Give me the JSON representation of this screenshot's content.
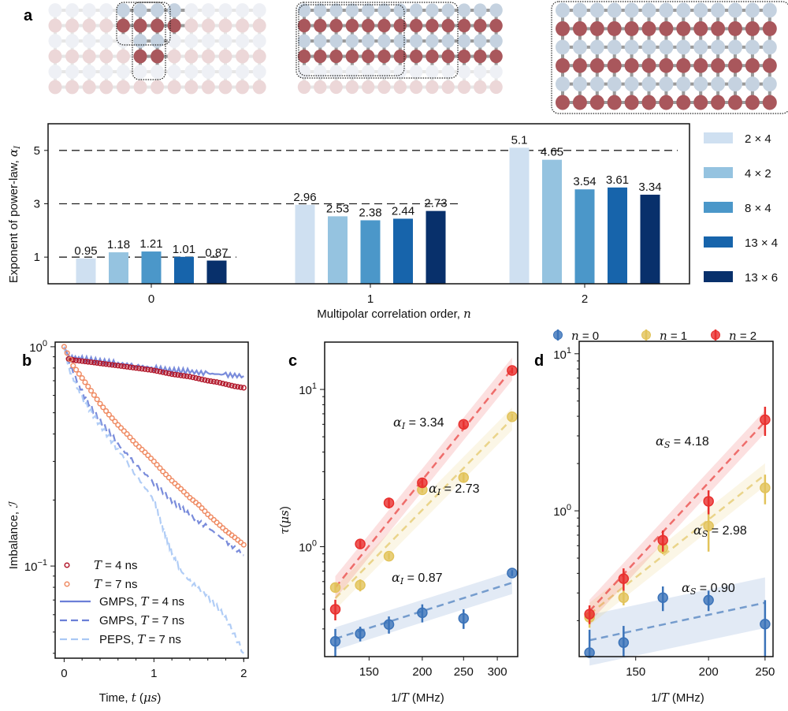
{
  "panel_labels": {
    "a": "a",
    "b": "b",
    "c": "c",
    "d": "d"
  },
  "lattice_illustrations": {
    "description": "Superconducting qubit lattices highlighting subsystem sizes",
    "colors": {
      "light_row": "#c5d2e0",
      "dark_row": "#a9575c",
      "faded_light": "#eef0f5",
      "faded_dark": "#ecd7d8"
    },
    "lattices": [
      {
        "name": "small-subsystems",
        "rows": 6,
        "cols": 13
      },
      {
        "name": "8x4-13x4",
        "rows": 6,
        "cols": 13
      },
      {
        "name": "13x6",
        "rows": 6,
        "cols": 13
      }
    ]
  },
  "chart_data": [
    {
      "id": "a",
      "type": "bar",
      "title": "",
      "xlabel": "Multipolar correlation order, n",
      "ylabel": "Exponent of power-law, α_I",
      "categories": [
        "0",
        "1",
        "2"
      ],
      "yticks": [
        "1",
        "3",
        "5"
      ],
      "ylim": [
        0,
        6
      ],
      "reference_lines": [
        1,
        3,
        5
      ],
      "legend_position": "right-outside",
      "series": [
        {
          "name": "2 × 4",
          "color": "#cfe0f1",
          "values": [
            0.95,
            2.96,
            5.1
          ]
        },
        {
          "name": "4 × 2",
          "color": "#95c3e0",
          "values": [
            1.18,
            2.53,
            4.65
          ]
        },
        {
          "name": "8 × 4",
          "color": "#4b97c9",
          "values": [
            1.21,
            2.38,
            3.54
          ]
        },
        {
          "name": "13 × 4",
          "color": "#1764ab",
          "values": [
            1.01,
            2.44,
            3.61
          ]
        },
        {
          "name": "13 × 6",
          "color": "#08306b",
          "values": [
            0.87,
            2.73,
            3.34
          ]
        }
      ],
      "value_labels": [
        [
          "0.95",
          "2.96",
          "5.1"
        ],
        [
          "1.18",
          "2.53",
          "4.65"
        ],
        [
          "1.21",
          "2.38",
          "3.54"
        ],
        [
          "1.01",
          "2.44",
          "3.61"
        ],
        [
          "0.87",
          "2.73",
          "3.34"
        ]
      ]
    },
    {
      "id": "b",
      "type": "line",
      "xlabel": "Time, t (μs)",
      "ylabel": "Imbalance, ℐ",
      "yscale": "log",
      "xlim": [
        -0.1,
        2.05
      ],
      "ylim": [
        0.038,
        1.05
      ],
      "xticks": [
        "0",
        "1",
        "2"
      ],
      "yticks": [
        "10^0",
        "10^-1"
      ],
      "legend_position": "bottom-left",
      "series": [
        {
          "name": "T = 4 ns",
          "kind": "markers",
          "color": "#b2182b",
          "x": [
            0.05,
            0.1,
            0.2,
            0.3,
            0.4,
            0.5,
            0.6,
            0.7,
            0.8,
            0.9,
            1.0,
            1.1,
            1.2,
            1.3,
            1.4,
            1.5,
            1.6,
            1.7,
            1.8,
            1.9,
            2.0
          ],
          "y": [
            0.88,
            0.87,
            0.86,
            0.85,
            0.84,
            0.83,
            0.82,
            0.81,
            0.8,
            0.79,
            0.78,
            0.765,
            0.75,
            0.74,
            0.73,
            0.715,
            0.7,
            0.69,
            0.675,
            0.66,
            0.65
          ]
        },
        {
          "name": "T = 7 ns",
          "kind": "markers",
          "color": "#ef8a62",
          "x": [
            0.0,
            0.1,
            0.2,
            0.3,
            0.4,
            0.5,
            0.6,
            0.7,
            0.8,
            0.9,
            1.0,
            1.1,
            1.2,
            1.3,
            1.4,
            1.5,
            1.6,
            1.7,
            1.8,
            1.9,
            2.0
          ],
          "y": [
            1.0,
            0.82,
            0.72,
            0.63,
            0.55,
            0.49,
            0.44,
            0.4,
            0.36,
            0.33,
            0.3,
            0.27,
            0.245,
            0.225,
            0.205,
            0.19,
            0.172,
            0.158,
            0.145,
            0.135,
            0.125
          ]
        },
        {
          "name": "GMPS, T = 4 ns",
          "kind": "solid",
          "color": "#6b7fd7",
          "x": [
            0.0,
            0.05,
            0.2,
            0.4,
            0.6,
            0.8,
            1.0,
            1.2,
            1.4,
            1.6,
            1.8,
            2.0
          ],
          "y": [
            1.0,
            0.9,
            0.88,
            0.86,
            0.84,
            0.82,
            0.8,
            0.78,
            0.77,
            0.755,
            0.745,
            0.735
          ]
        },
        {
          "name": "GMPS, T = 7 ns",
          "kind": "dashed",
          "color": "#6b7fd7",
          "x": [
            0.0,
            0.05,
            0.2,
            0.4,
            0.6,
            0.8,
            1.0,
            1.2,
            1.4,
            1.6,
            1.8,
            2.0
          ],
          "y": [
            1.0,
            0.85,
            0.62,
            0.46,
            0.36,
            0.29,
            0.24,
            0.2,
            0.17,
            0.15,
            0.13,
            0.112
          ]
        },
        {
          "name": "PEPS, T = 7 ns",
          "kind": "dashed",
          "color": "#a9c8f5",
          "x": [
            0.0,
            0.05,
            0.2,
            0.4,
            0.6,
            0.8,
            1.0,
            1.1,
            1.2,
            1.3,
            1.4,
            1.6,
            1.8,
            2.0
          ],
          "y": [
            1.0,
            0.8,
            0.58,
            0.44,
            0.34,
            0.26,
            0.2,
            0.15,
            0.115,
            0.095,
            0.085,
            0.073,
            0.058,
            0.04
          ]
        }
      ]
    },
    {
      "id": "c",
      "type": "scatter",
      "xlabel": "1/T (MHz)",
      "ylabel": "τ(μs)",
      "xscale": "log",
      "yscale": "log",
      "xlim": [
        118,
        335
      ],
      "ylim": [
        0.2,
        20
      ],
      "xticks": [
        "150",
        "200",
        "250",
        "300"
      ],
      "yticks": [
        "10^0",
        "10^1"
      ],
      "series": [
        {
          "name": "n = 0",
          "color": "#3b73b9",
          "fit_exponent_label": "α_I = 0.87",
          "x": [
            125,
            143,
            167,
            200,
            250,
            325
          ],
          "y": [
            0.25,
            0.28,
            0.32,
            0.38,
            0.35,
            0.68
          ],
          "err": [
            0.05,
            0.03,
            0.04,
            0.05,
            0.05,
            0.03
          ],
          "fit": {
            "x": [
              125,
              325
            ],
            "y": [
              0.26,
              0.59
            ]
          }
        },
        {
          "name": "n = 1",
          "color": "#e2c35a",
          "fit_exponent_label": "α_I = 2.73",
          "x": [
            125,
            143,
            167,
            200,
            250,
            325
          ],
          "y": [
            0.55,
            0.57,
            0.87,
            2.3,
            2.75,
            6.7
          ],
          "err": [
            0.04,
            0.05,
            0.04,
            0.1,
            0.2,
            0.3
          ],
          "fit": {
            "x": [
              125,
              325
            ],
            "y": [
              0.47,
              6.5
            ]
          }
        },
        {
          "name": "n = 2",
          "color": "#e8302e",
          "fit_exponent_label": "α_I = 3.34",
          "x": [
            125,
            143,
            167,
            200,
            250,
            325
          ],
          "y": [
            0.4,
            1.04,
            1.9,
            2.55,
            6.0,
            13.2
          ],
          "err": [
            0.06,
            0.06,
            0.15,
            0.15,
            0.3,
            0.6
          ],
          "fit": {
            "x": [
              125,
              325
            ],
            "y": [
              0.55,
              13.5
            ]
          }
        }
      ]
    },
    {
      "id": "d",
      "type": "scatter",
      "xlabel": "1/T (MHz)",
      "ylabel": "",
      "xscale": "log",
      "yscale": "log",
      "xlim": [
        120,
        258
      ],
      "ylim": [
        0.118,
        12
      ],
      "xticks": [
        "150",
        "200",
        "250"
      ],
      "yticks": [
        "10^0",
        "10^1"
      ],
      "legend_position": "top",
      "series": [
        {
          "name": "n = 0",
          "color": "#3b73b9",
          "fit_exponent_label": "α_S = 0.90",
          "x": [
            125,
            143,
            167,
            200,
            250
          ],
          "y": [
            0.125,
            0.145,
            0.28,
            0.27,
            0.19
          ],
          "err": [
            0.05,
            0.04,
            0.05,
            0.04,
            0.08
          ],
          "fit": {
            "x": [
              125,
              250
            ],
            "y": [
              0.15,
              0.26
            ]
          }
        },
        {
          "name": "n = 1",
          "color": "#e2c35a",
          "fit_exponent_label": "α_S = 2.98",
          "x": [
            125,
            143,
            167,
            200,
            250
          ],
          "y": [
            0.21,
            0.28,
            0.58,
            0.8,
            1.4
          ],
          "err": [
            0.03,
            0.03,
            0.05,
            0.25,
            0.3
          ],
          "fit": {
            "x": [
              125,
              250
            ],
            "y": [
              0.22,
              1.7
            ]
          }
        },
        {
          "name": "n = 2",
          "color": "#e8302e",
          "fit_exponent_label": "α_S = 4.18",
          "x": [
            125,
            143,
            167,
            200,
            250
          ],
          "y": [
            0.22,
            0.37,
            0.65,
            1.15,
            3.8
          ],
          "err": [
            0.03,
            0.06,
            0.1,
            0.2,
            0.8
          ],
          "fit": {
            "x": [
              125,
              250
            ],
            "y": [
              0.23,
              3.7
            ]
          }
        }
      ]
    }
  ],
  "panel_d_legend": [
    {
      "symbol": "n",
      "text": " = 0"
    },
    {
      "symbol": "n",
      "text": " = 1"
    },
    {
      "symbol": "n",
      "text": " = 2"
    }
  ]
}
